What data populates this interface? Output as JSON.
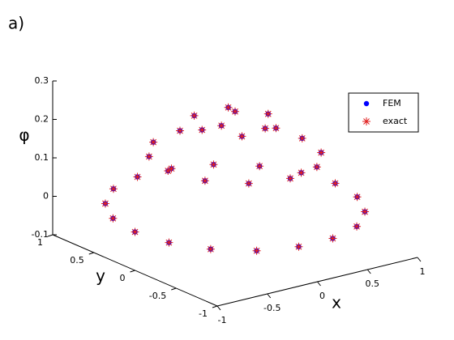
{
  "chart_data": {
    "type": "scatter3d",
    "panel_label": "a)",
    "xlabel": "x",
    "ylabel": "y",
    "zlabel": "φ",
    "x": [
      0,
      0.33,
      0.17,
      -0.17,
      -0.33,
      -0.17,
      0.17,
      0.67,
      0.58,
      0.34,
      0,
      -0.34,
      -0.58,
      -0.67,
      -0.58,
      -0.34,
      0,
      0.34,
      0.58,
      1,
      0.94,
      0.77,
      0.5,
      0.17,
      -0.17,
      -0.5,
      -0.77,
      -0.94,
      -1,
      -0.94,
      -0.77,
      -0.5,
      -0.17,
      0.17,
      0.5,
      0.77,
      0.94
    ],
    "y": [
      0,
      0,
      0.29,
      0.29,
      0,
      -0.29,
      -0.29,
      0,
      0.34,
      0.58,
      0.67,
      0.58,
      0.34,
      0,
      -0.34,
      -0.58,
      -0.67,
      -0.58,
      -0.34,
      0,
      0.34,
      0.64,
      0.87,
      0.98,
      0.98,
      0.87,
      0.64,
      0.34,
      0,
      -0.34,
      -0.64,
      -0.87,
      -0.98,
      -0.98,
      -0.87,
      -0.64,
      -0.34
    ],
    "series": [
      {
        "name": "FEM",
        "color": "#0000ff",
        "marker": "dot",
        "values": [
          0.25,
          0.223,
          0.223,
          0.223,
          0.223,
          0.223,
          0.223,
          0.138,
          0.138,
          0.138,
          0.138,
          0.138,
          0.138,
          0.138,
          0.138,
          0.138,
          0.138,
          0.138,
          0.138,
          0,
          0,
          0,
          0,
          0,
          0,
          0,
          0,
          0,
          0,
          0,
          0,
          0,
          0,
          0,
          0,
          0,
          0
        ]
      },
      {
        "name": "exact",
        "color": "#e02020",
        "marker": "asterisk",
        "values": [
          0.25,
          0.223,
          0.223,
          0.223,
          0.223,
          0.223,
          0.223,
          0.138,
          0.138,
          0.138,
          0.138,
          0.138,
          0.138,
          0.138,
          0.138,
          0.138,
          0.138,
          0.138,
          0.138,
          0,
          0,
          0,
          0,
          0,
          0,
          0,
          0,
          0,
          0,
          0,
          0,
          0,
          0,
          0,
          0,
          0,
          0
        ]
      }
    ],
    "xlim": [
      -1,
      1
    ],
    "ylim": [
      -1,
      1
    ],
    "zlim": [
      -0.1,
      0.3
    ],
    "xticks": [
      -1,
      -0.5,
      0,
      0.5,
      1
    ],
    "yticks": [
      -1,
      -0.5,
      0,
      0.5,
      1
    ],
    "zticks": [
      -0.1,
      0,
      0.1,
      0.2,
      0.3
    ],
    "legend": "upper right"
  }
}
